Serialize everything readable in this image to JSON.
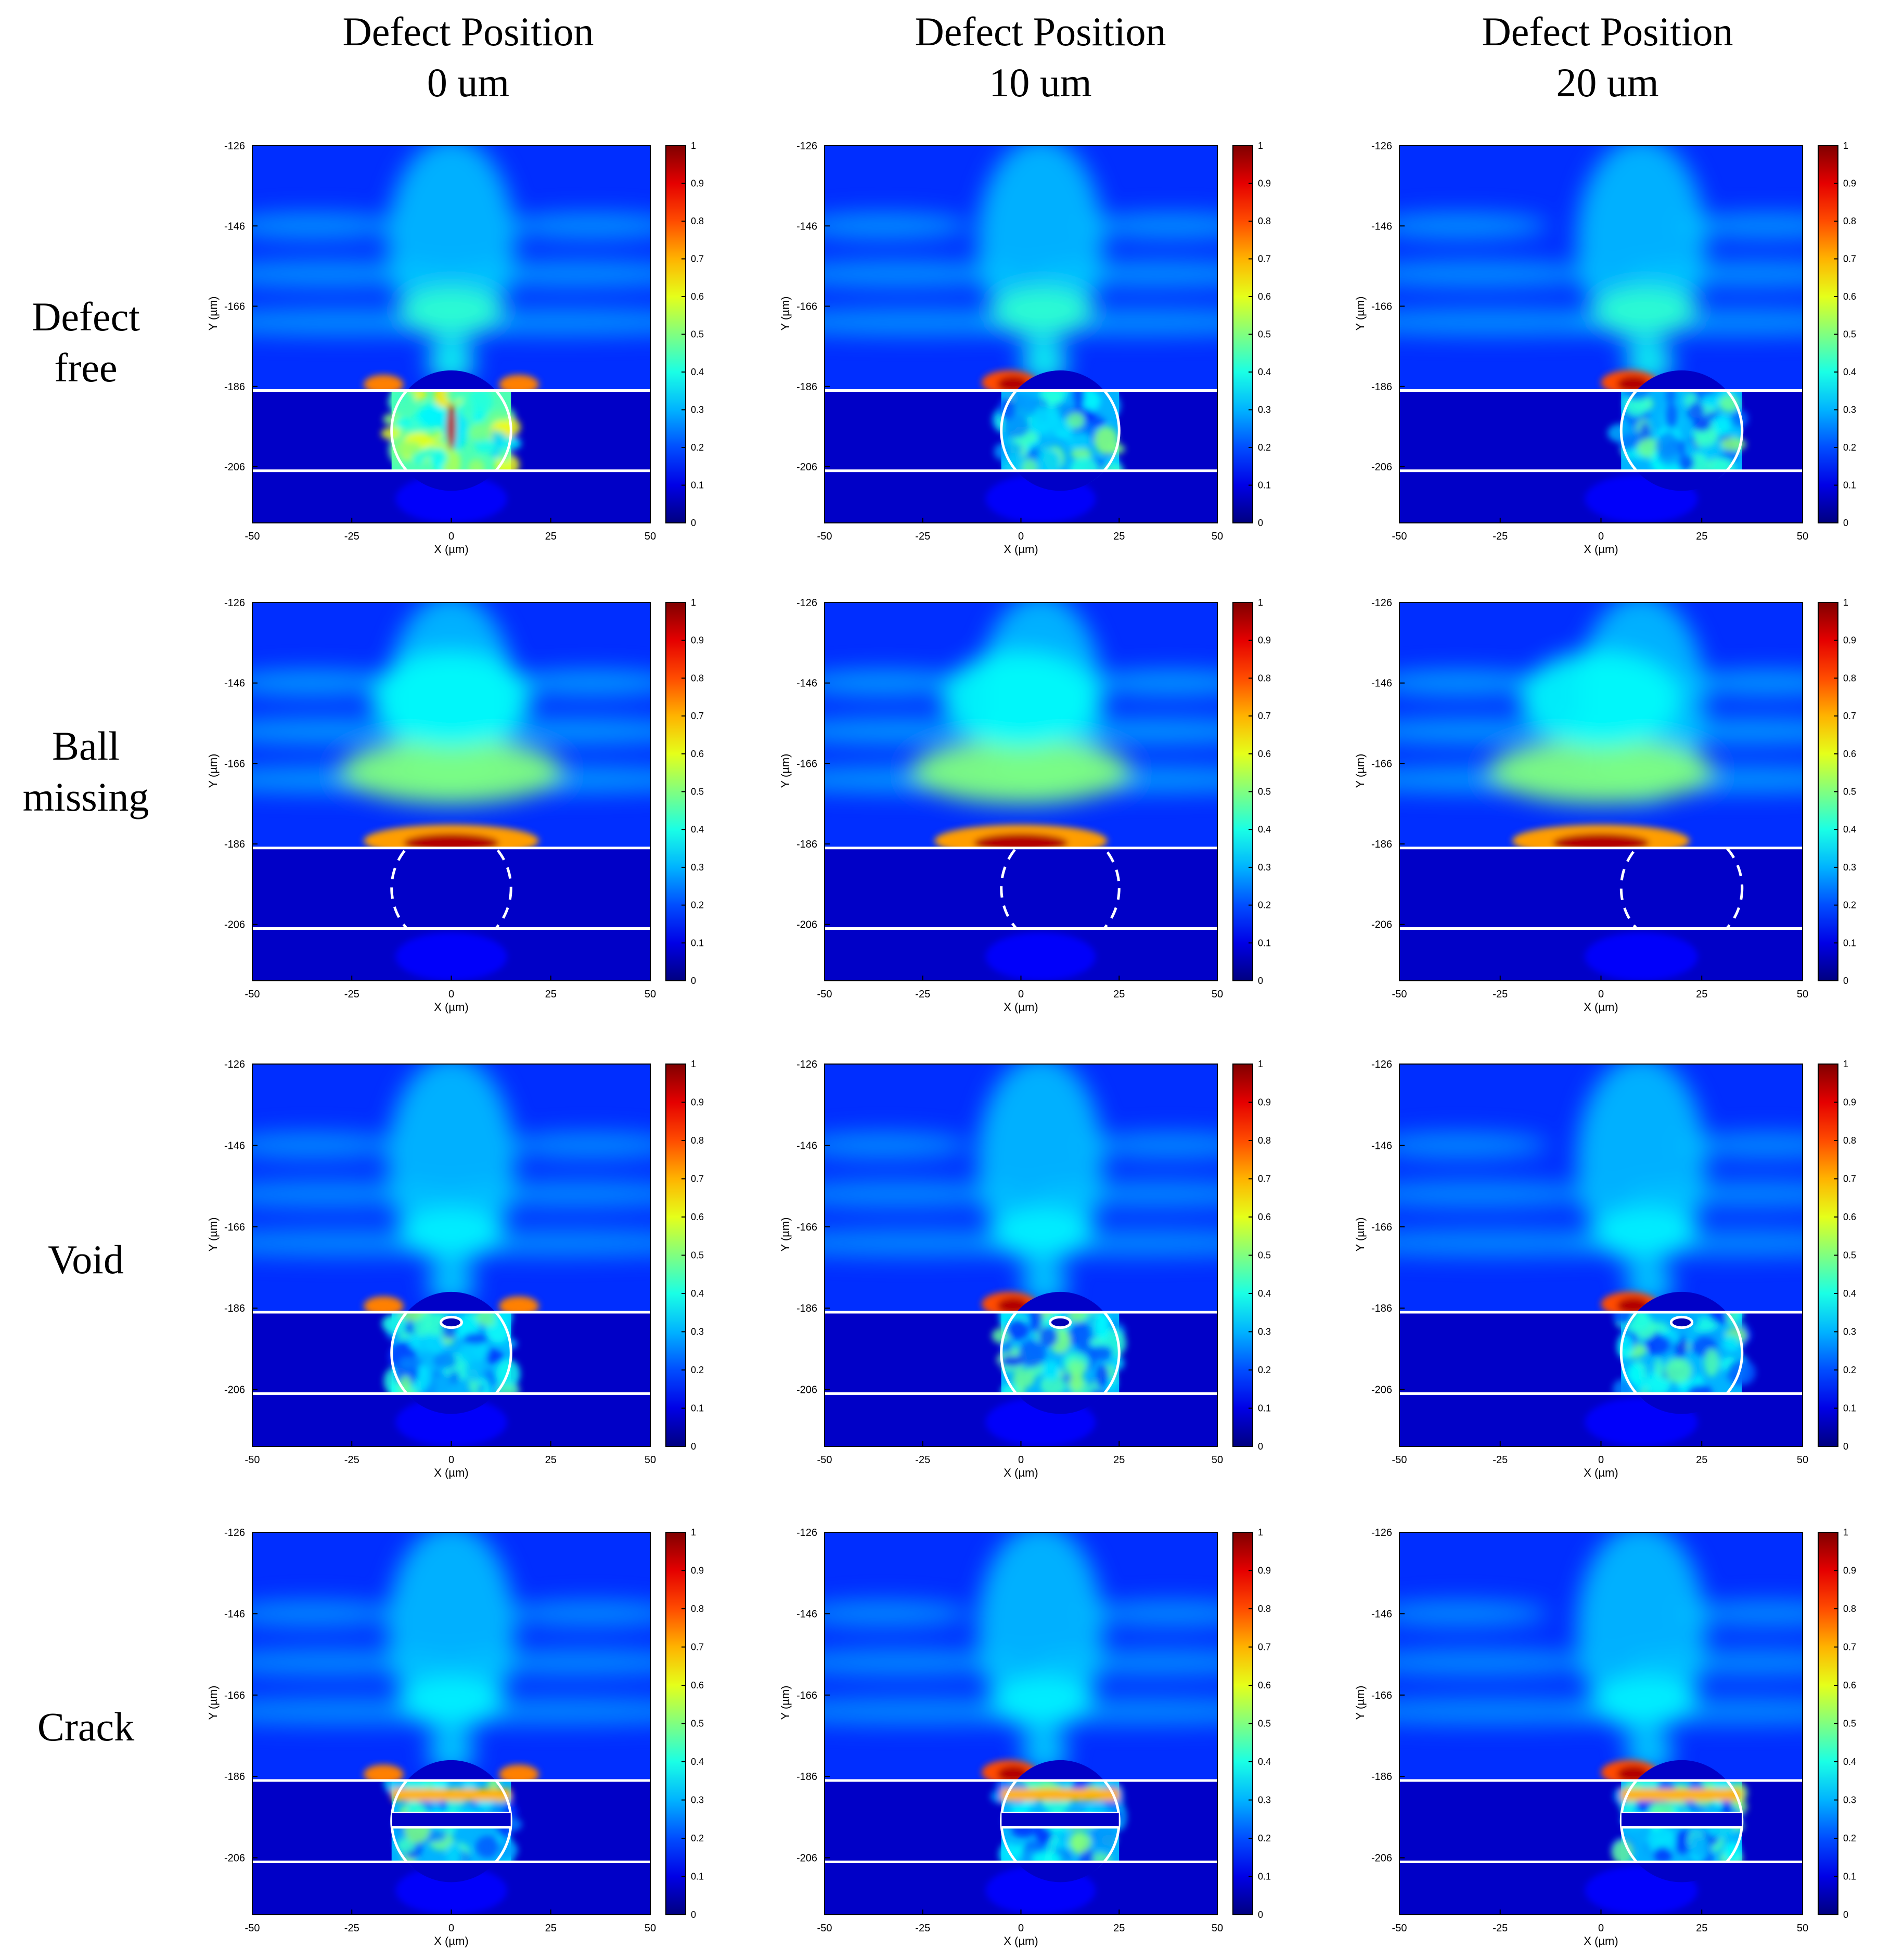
{
  "columns": [
    {
      "line1": "Defect Position",
      "line2": "0 um"
    },
    {
      "line1": "Defect Position",
      "line2": "10 um"
    },
    {
      "line1": "Defect Position",
      "line2": "20 um"
    }
  ],
  "rows": [
    {
      "line1": "Defect",
      "line2": "free",
      "type": "free"
    },
    {
      "line1": "Ball",
      "line2": "missing",
      "type": "missing"
    },
    {
      "line1": "Void",
      "line2": "",
      "type": "void"
    },
    {
      "line1": "Crack",
      "line2": "",
      "type": "crack"
    }
  ],
  "chart_data": {
    "type": "heatmap",
    "colormap": "jet",
    "xlabel": "X (µm)",
    "ylabel": "Y (µm)",
    "xlim": [
      -50,
      50
    ],
    "ylim": [
      -220,
      -126
    ],
    "x_ticks": [
      -50,
      -25,
      0,
      25,
      50
    ],
    "y_ticks": [
      -126,
      -146,
      -166,
      -186,
      -206
    ],
    "colorbar_ticks": [
      0,
      0.1,
      0.2,
      0.3,
      0.4,
      0.5,
      0.6,
      0.7,
      0.8,
      0.9,
      1
    ],
    "colorbar_range": [
      0,
      1
    ],
    "interface_lines_y": [
      -187,
      -207
    ],
    "ball_radius": 15,
    "defect_x_positions": [
      0,
      10,
      20
    ]
  }
}
